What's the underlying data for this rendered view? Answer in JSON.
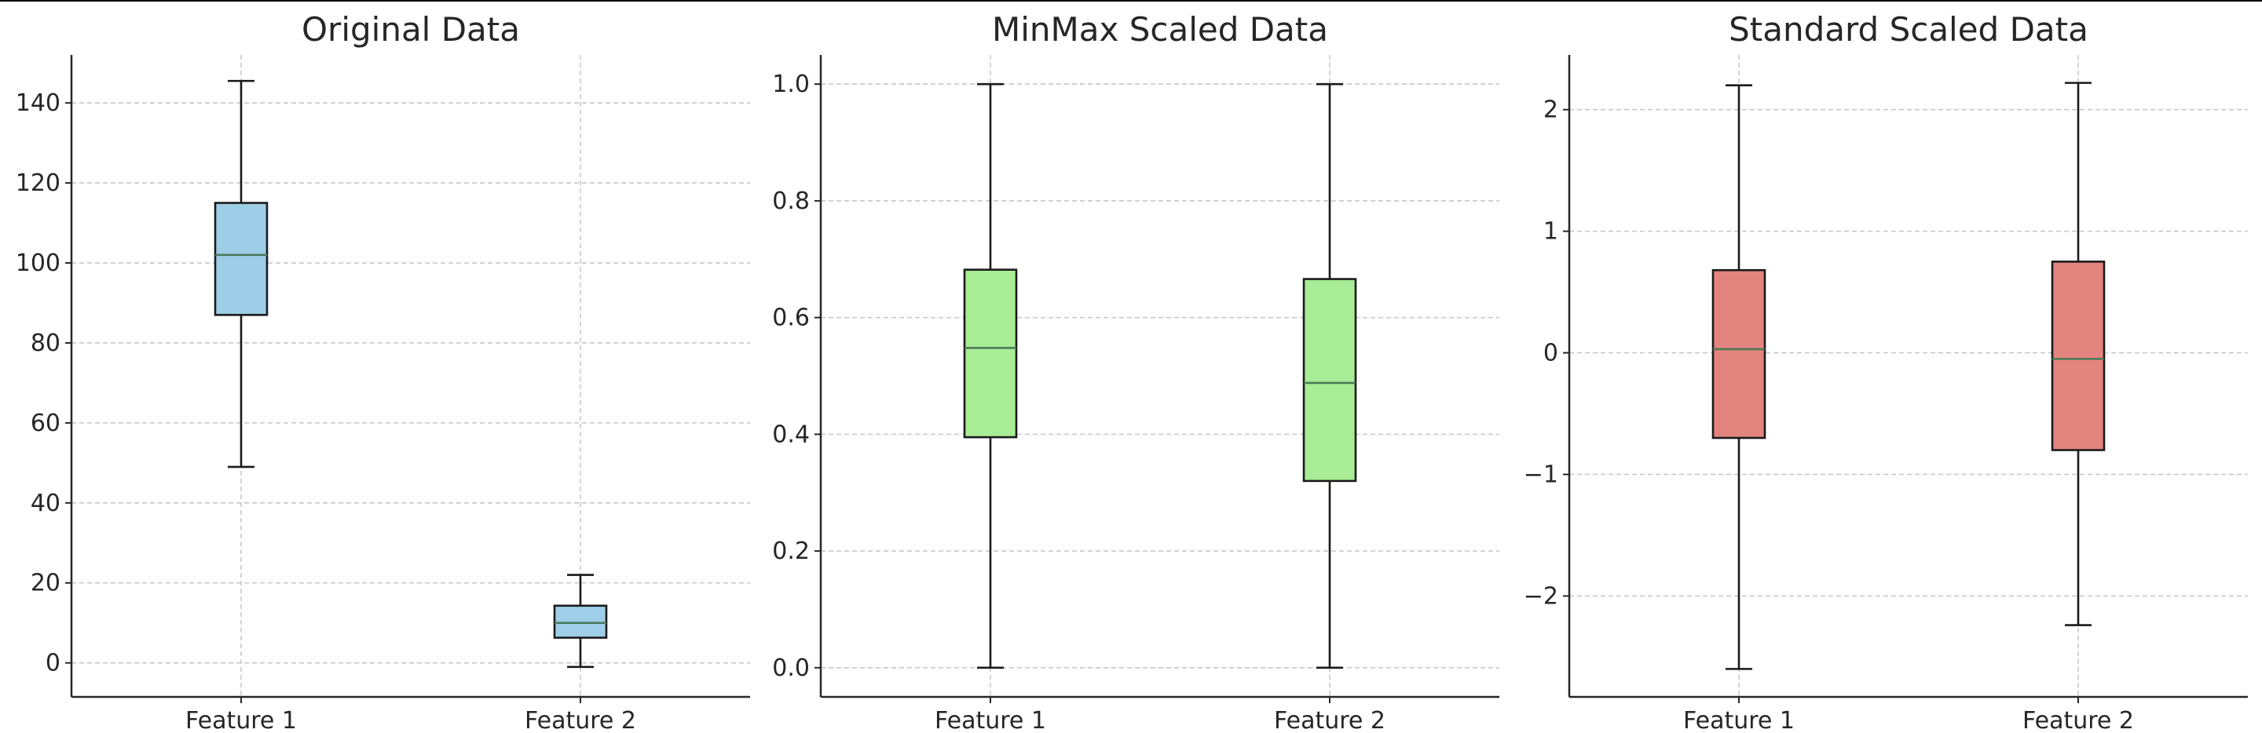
{
  "chart_data": [
    {
      "type": "box",
      "title": "Original Data",
      "categories": [
        "Feature 1",
        "Feature 2"
      ],
      "ylim": [
        -8.5,
        152
      ],
      "yticks": [
        0,
        20,
        40,
        60,
        80,
        100,
        120,
        140
      ],
      "ytick_labels": [
        "0",
        "20",
        "40",
        "60",
        "80",
        "100",
        "120",
        "140"
      ],
      "grid": true,
      "box_color": "#9ecde8",
      "boxes": [
        {
          "whisker_low": 49,
          "q1": 87,
          "median": 102,
          "q3": 115,
          "whisker_high": 145.5
        },
        {
          "whisker_low": -1,
          "q1": 6.3,
          "median": 10,
          "q3": 14.3,
          "whisker_high": 22
        }
      ]
    },
    {
      "type": "box",
      "title": "MinMax Scaled Data",
      "categories": [
        "Feature 1",
        "Feature 2"
      ],
      "ylim": [
        -0.05,
        1.05
      ],
      "yticks": [
        0.0,
        0.2,
        0.4,
        0.6,
        0.8,
        1.0
      ],
      "ytick_labels": [
        "0.0",
        "0.2",
        "0.4",
        "0.6",
        "0.8",
        "1.0"
      ],
      "grid": true,
      "box_color": "#a8ec96",
      "boxes": [
        {
          "whisker_low": 0.0,
          "q1": 0.395,
          "median": 0.548,
          "q3": 0.682,
          "whisker_high": 1.0
        },
        {
          "whisker_low": 0.0,
          "q1": 0.32,
          "median": 0.488,
          "q3": 0.666,
          "whisker_high": 1.0
        }
      ]
    },
    {
      "type": "box",
      "title": "Standard Scaled Data",
      "categories": [
        "Feature 1",
        "Feature 2"
      ],
      "ylim": [
        -2.83,
        2.45
      ],
      "yticks": [
        -2,
        -1,
        0,
        1,
        2
      ],
      "ytick_labels": [
        "−2",
        "−1",
        "0",
        "1",
        "2"
      ],
      "grid": true,
      "box_color": "#e4847e",
      "boxes": [
        {
          "whisker_low": -2.6,
          "q1": -0.7,
          "median": 0.03,
          "q3": 0.68,
          "whisker_high": 2.2
        },
        {
          "whisker_low": -2.24,
          "q1": -0.8,
          "median": -0.05,
          "q3": 0.75,
          "whisker_high": 2.22
        }
      ]
    }
  ]
}
